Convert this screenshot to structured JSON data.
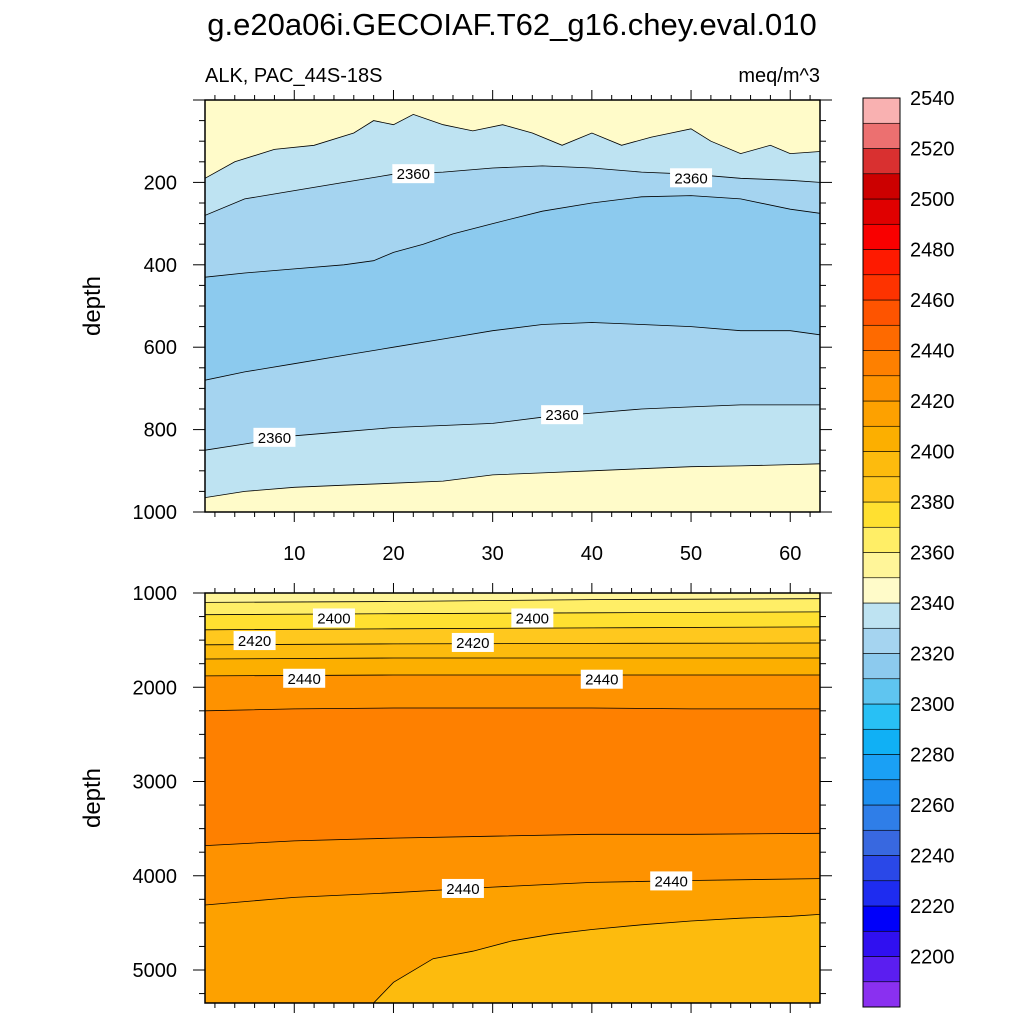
{
  "figure": {
    "title": "g.e20a06i.GECOIAF.T62_g16.chey.eval.010",
    "subtitle_left": "ALK, PAC_44S-18S",
    "subtitle_right": "meq/m^3"
  },
  "chart_data": [
    {
      "type": "contour",
      "panel": "upper",
      "ylabel": "depth",
      "xlim": [
        1,
        63
      ],
      "ylim": [
        1000,
        0
      ],
      "x_ticks": [
        10,
        20,
        30,
        40,
        50,
        60
      ],
      "y_ticks": [
        200,
        400,
        600,
        800,
        1000
      ],
      "contour_lines": [
        {
          "level": 2370,
          "x": [
            1,
            4,
            8,
            12,
            16,
            18,
            20,
            22,
            25,
            28,
            31,
            34,
            37,
            40,
            43,
            46,
            48,
            50,
            52,
            55,
            58,
            60,
            63
          ],
          "depth": [
            190,
            150,
            120,
            110,
            80,
            50,
            60,
            35,
            60,
            75,
            60,
            80,
            110,
            80,
            110,
            90,
            80,
            70,
            100,
            130,
            110,
            130,
            125
          ]
        },
        {
          "level": 2360,
          "x": [
            1,
            5,
            10,
            15,
            20,
            25,
            30,
            35,
            40,
            45,
            50,
            55,
            60,
            63
          ],
          "depth": [
            280,
            240,
            220,
            200,
            180,
            175,
            165,
            160,
            165,
            175,
            180,
            190,
            195,
            200
          ]
        },
        {
          "level": 2350,
          "x": [
            1,
            5,
            10,
            15,
            18,
            20,
            23,
            26,
            30,
            35,
            40,
            45,
            50,
            55,
            60,
            63
          ],
          "depth": [
            430,
            420,
            410,
            400,
            390,
            370,
            350,
            325,
            300,
            270,
            250,
            235,
            232,
            240,
            265,
            275
          ]
        },
        {
          "level": 2350,
          "x": [
            1,
            5,
            10,
            15,
            20,
            25,
            30,
            35,
            40,
            45,
            50,
            55,
            60,
            63
          ],
          "depth": [
            680,
            660,
            640,
            620,
            600,
            580,
            560,
            545,
            540,
            545,
            550,
            560,
            560,
            570
          ]
        },
        {
          "level": 2360,
          "x": [
            1,
            5,
            10,
            15,
            20,
            25,
            30,
            35,
            40,
            45,
            50,
            55,
            60,
            63
          ],
          "depth": [
            850,
            835,
            815,
            805,
            795,
            790,
            785,
            770,
            760,
            750,
            745,
            740,
            740,
            740
          ]
        },
        {
          "level": 2370,
          "x": [
            1,
            5,
            10,
            15,
            20,
            25,
            30,
            35,
            40,
            45,
            50,
            55,
            60,
            63
          ],
          "depth": [
            965,
            950,
            940,
            935,
            930,
            925,
            910,
            905,
            900,
            895,
            890,
            888,
            885,
            883
          ]
        }
      ],
      "labels": [
        {
          "text": "2360",
          "x": 22,
          "depth": 180
        },
        {
          "text": "2360",
          "x": 50,
          "depth": 190
        },
        {
          "text": "2360",
          "x": 8,
          "depth": 820
        },
        {
          "text": "2360",
          "x": 37,
          "depth": 765
        }
      ]
    },
    {
      "type": "contour",
      "panel": "lower",
      "ylabel": "depth",
      "xlim": [
        1,
        63
      ],
      "ylim": [
        5350,
        1000
      ],
      "y_ticks": [
        1000,
        2000,
        3000,
        4000,
        5000
      ],
      "contour_lines": [
        {
          "level": 2390,
          "x": [
            1,
            20,
            40,
            63
          ],
          "depth": [
            1100,
            1090,
            1070,
            1060
          ]
        },
        {
          "level": 2400,
          "x": [
            1,
            20,
            40,
            63
          ],
          "depth": [
            1230,
            1220,
            1210,
            1200
          ]
        },
        {
          "level": 2410,
          "x": [
            1,
            20,
            40,
            63
          ],
          "depth": [
            1390,
            1380,
            1370,
            1360
          ]
        },
        {
          "level": 2420,
          "x": [
            1,
            20,
            40,
            63
          ],
          "depth": [
            1550,
            1540,
            1535,
            1530
          ]
        },
        {
          "level": 2430,
          "x": [
            1,
            20,
            40,
            63
          ],
          "depth": [
            1700,
            1690,
            1690,
            1690
          ]
        },
        {
          "level": 2440,
          "x": [
            1,
            20,
            40,
            63
          ],
          "depth": [
            1880,
            1870,
            1870,
            1870
          ]
        },
        {
          "level": 2450,
          "x": [
            1,
            10,
            20,
            30,
            40,
            50,
            63
          ],
          "depth": [
            2250,
            2230,
            2220,
            2220,
            2220,
            2230,
            2230
          ]
        },
        {
          "level": 2450,
          "x": [
            1,
            10,
            20,
            30,
            40,
            50,
            63
          ],
          "depth": [
            3680,
            3630,
            3600,
            3580,
            3560,
            3560,
            3550
          ]
        },
        {
          "level": 2440,
          "x": [
            1,
            10,
            20,
            30,
            40,
            50,
            63
          ],
          "depth": [
            4310,
            4230,
            4180,
            4120,
            4070,
            4050,
            4030
          ]
        },
        {
          "level": 2430,
          "x": [
            18,
            20,
            24,
            28,
            32,
            36,
            40,
            45,
            50,
            55,
            60,
            63
          ],
          "depth": [
            5350,
            5130,
            4880,
            4800,
            4690,
            4620,
            4570,
            4520,
            4480,
            4450,
            4430,
            4410
          ]
        }
      ],
      "labels": [
        {
          "text": "2400",
          "x": 14,
          "depth": 1270
        },
        {
          "text": "2400",
          "x": 34,
          "depth": 1270
        },
        {
          "text": "2420",
          "x": 6,
          "depth": 1510
        },
        {
          "text": "2420",
          "x": 28,
          "depth": 1530
        },
        {
          "text": "2440",
          "x": 11,
          "depth": 1910
        },
        {
          "text": "2440",
          "x": 41,
          "depth": 1920
        },
        {
          "text": "2440",
          "x": 27,
          "depth": 4140
        },
        {
          "text": "2440",
          "x": 48,
          "depth": 4060
        }
      ]
    }
  ],
  "colorbar": {
    "tick_labels": [
      "2200",
      "2220",
      "2240",
      "2260",
      "2280",
      "2300",
      "2320",
      "2340",
      "2360",
      "2380",
      "2400",
      "2420",
      "2440",
      "2460",
      "2480",
      "2500",
      "2520",
      "2540"
    ],
    "colors": [
      "#8a30f0",
      "#5b1ef0",
      "#3010f0",
      "#0000fa",
      "#1e2cf0",
      "#2a48e8",
      "#3868e0",
      "#2f7ee8",
      "#1d8ff0",
      "#1aa0f5",
      "#10b0f5",
      "#28c0f5",
      "#5fc5f0",
      "#8ccaee",
      "#a5d4f0",
      "#bee3f2",
      "#fffbc9",
      "#fff599",
      "#ffee66",
      "#ffe030",
      "#ffc81e",
      "#fdbb0d",
      "#fcaf00",
      "#fda100",
      "#fe9200",
      "#fe8000",
      "#fe6a00",
      "#fe5400",
      "#fe3300",
      "#fe1a00",
      "#f90000",
      "#e00000",
      "#cc0000",
      "#d93030",
      "#ec7070",
      "#f9b1b1"
    ]
  }
}
